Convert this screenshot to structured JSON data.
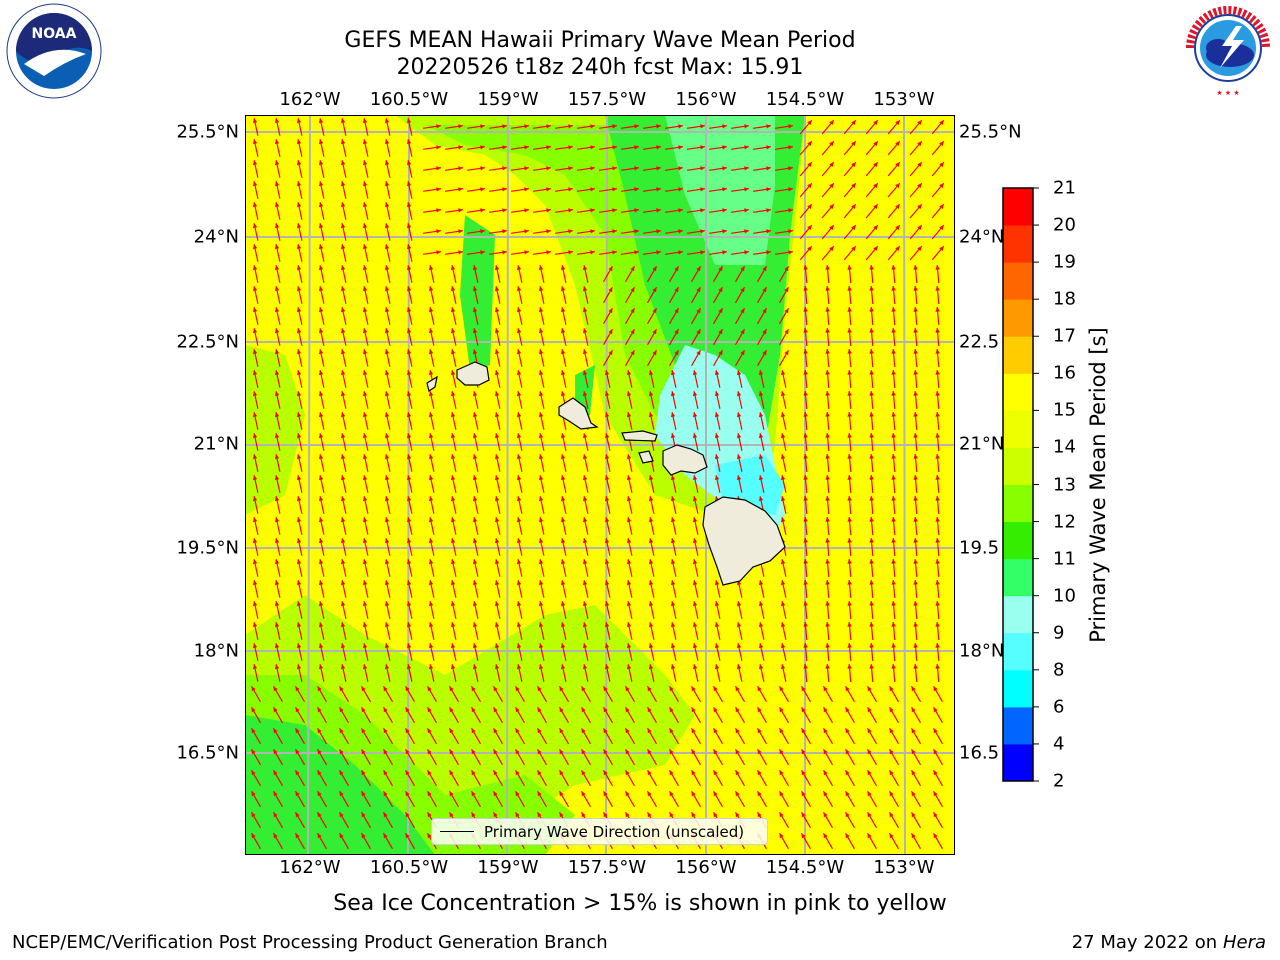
{
  "title_line1": "GEFS MEAN Hawaii Primary Wave Mean Period",
  "title_line2": "20220526 t18z 240h fcst   Max: 15.91",
  "logos": {
    "left": "NOAA",
    "left_ring": "NATIONAL OCEANIC AND ATMOSPHERIC ADMINISTRATION · U.S. DEPARTMENT OF COMMERCE",
    "right": "NATIONAL WEATHER SERVICE"
  },
  "lon_ticks": [
    "162°W",
    "160.5°W",
    "159°W",
    "157.5°W",
    "156°W",
    "154.5°W",
    "153°W"
  ],
  "lat_ticks_left": [
    "25.5°N",
    "24°N",
    "22.5°N",
    "21°N",
    "19.5°N",
    "18°N",
    "16.5°N"
  ],
  "lat_ticks_right": [
    "25.5°N",
    "24°N",
    "22.5",
    "21°N",
    "19.5",
    "18°N",
    "16.5"
  ],
  "colorbar": {
    "label": "Primary Wave Mean Period [s]",
    "ticks": [
      "2",
      "4",
      "6",
      "8",
      "9",
      "10",
      "11",
      "12",
      "13",
      "14",
      "15",
      "16",
      "17",
      "18",
      "19",
      "20",
      "21"
    ],
    "colors": [
      "#0000ff",
      "#0066ff",
      "#00ffff",
      "#55ffff",
      "#99ffee",
      "#33ff66",
      "#33ee00",
      "#88ff00",
      "#ccff00",
      "#eeff00",
      "#ffff00",
      "#ffcc00",
      "#ff9900",
      "#ff6600",
      "#ff3300",
      "#ff0000"
    ]
  },
  "legend_label": "Primary Wave Direction (unscaled)",
  "note": "Sea Ice Concentration > 15% is shown in pink to yellow",
  "footer_left": "NCEP/EMC/Verification Post Processing Product Generation Branch",
  "footer_date": "27 May 2022 on",
  "footer_host": "Hera",
  "colors": {
    "arrow": "#ff0000",
    "land": "#f0ecdc",
    "grid": "#b4b4b4"
  }
}
